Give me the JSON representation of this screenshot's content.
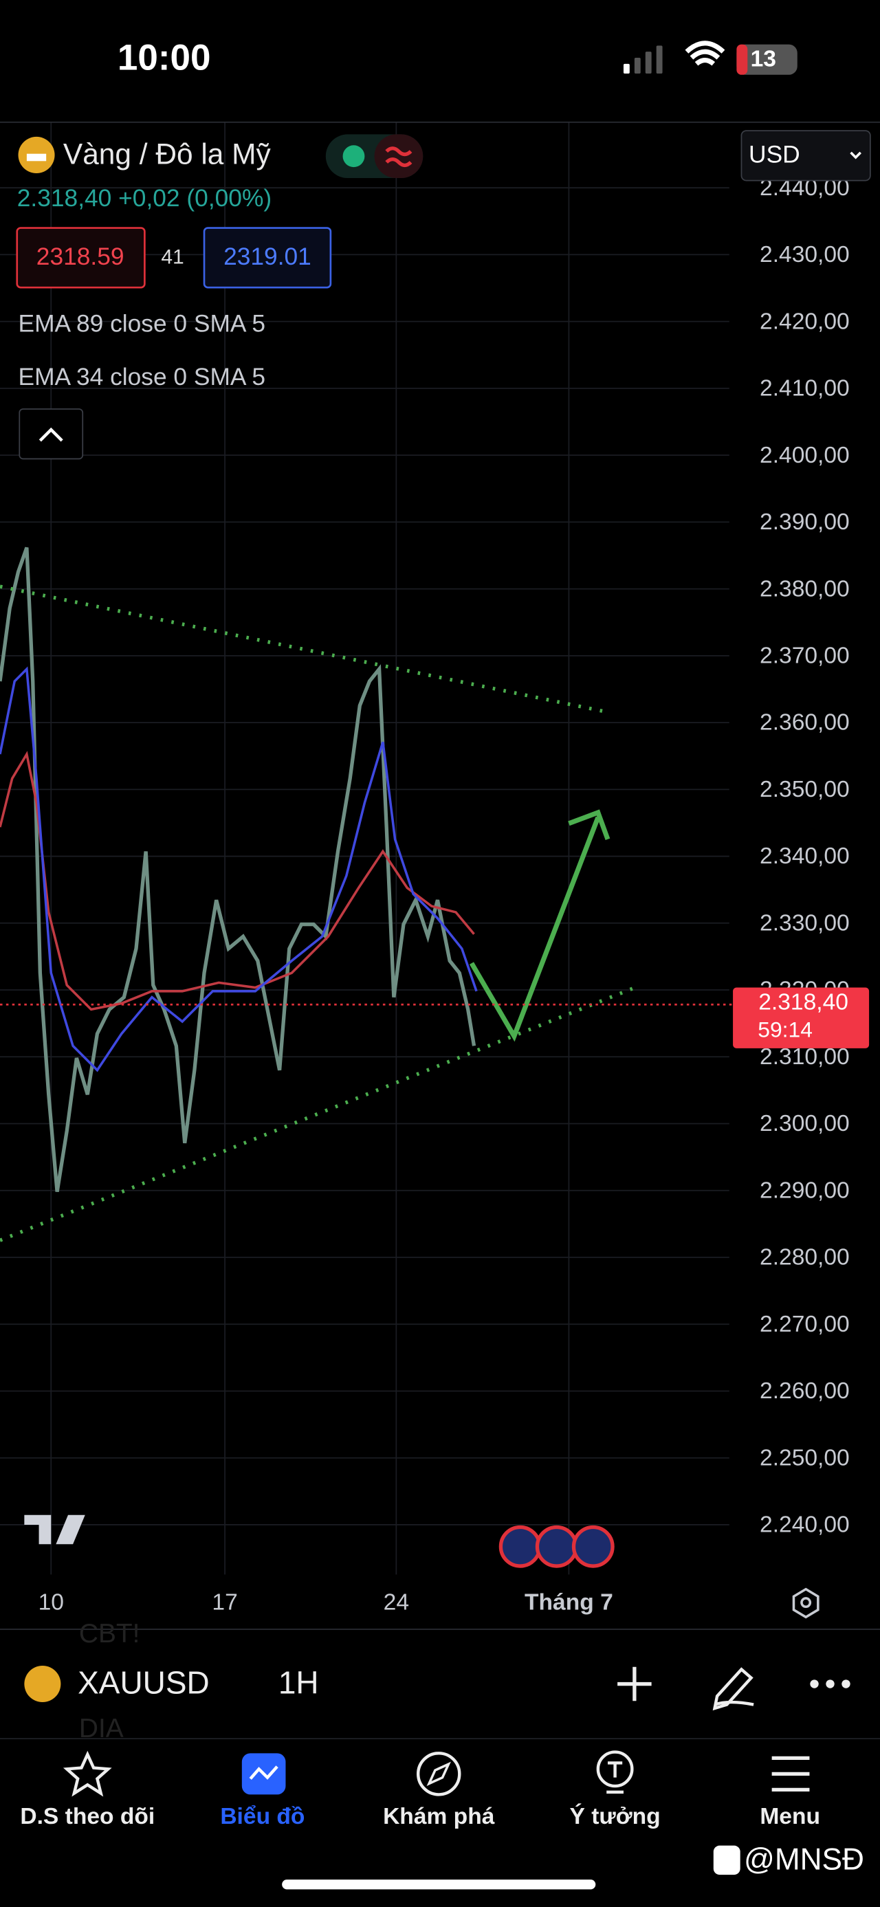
{
  "status_bar": {
    "time": "10:00",
    "battery": "13"
  },
  "header": {
    "symbol_name": "Vàng / Đô la Mỹ",
    "currency": "USD",
    "quote": "2.318,40 +0,02 (0,00%)",
    "bid": "2318.59",
    "spread": "41",
    "ask": "2319.01",
    "indicators": [
      "EMA 89 close 0 SMA 5",
      "EMA 34 close 0 SMA 5"
    ]
  },
  "price_axis": {
    "labels": [
      "2.440,00",
      "2.430,00",
      "2.420,00",
      "2.410,00",
      "2.400,00",
      "2.390,00",
      "2.380,00",
      "2.370,00",
      "2.360,00",
      "2.350,00",
      "2.340,00",
      "2.330,00",
      "2.320,00",
      "2.310,00",
      "2.300,00",
      "2.290,00",
      "2.280,00",
      "2.270,00",
      "2.260,00",
      "2.250,00",
      "2.240,00"
    ],
    "current_price": "2.318,40",
    "countdown": "59:14"
  },
  "time_axis": {
    "labels": [
      "10",
      "17",
      "24",
      "Tháng 7"
    ]
  },
  "background_text": [
    "CBT!",
    "DIA"
  ],
  "toolbar": {
    "symbol": "XAUUSD",
    "interval": "1H"
  },
  "tabs": [
    "D.S theo dõi",
    "Biểu đồ",
    "Khám phá",
    "Ý tưởng",
    "Menu"
  ],
  "watermark": "@MNSĐ"
}
